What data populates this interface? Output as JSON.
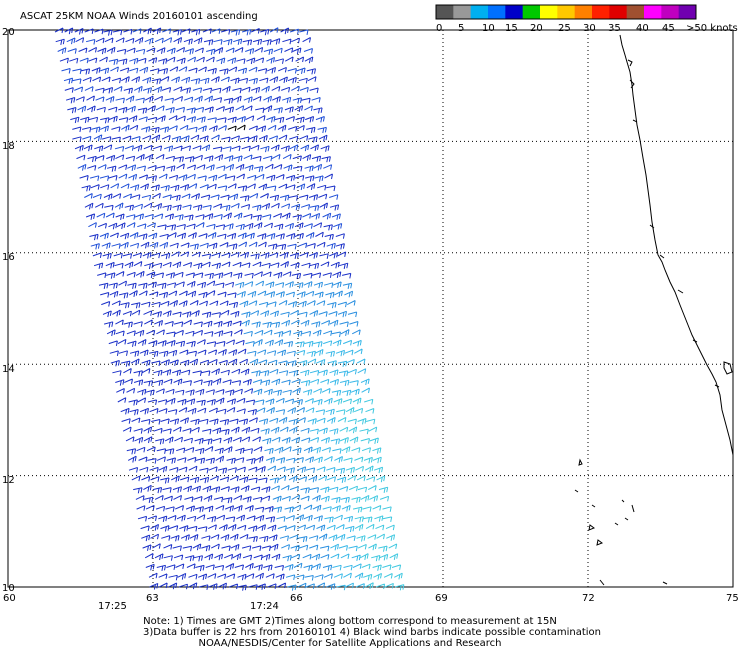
{
  "title": "ASCAT 25KM NOAA Winds 20160101 ascending",
  "legend": {
    "colors": [
      "#555555",
      "#999999",
      "#00b0f0",
      "#0070ff",
      "#0000c8",
      "#00c800",
      "#ffff00",
      "#ffc800",
      "#ff8000",
      "#ff2000",
      "#e00000",
      "#a05030",
      "#ff00ff",
      "#c000c0",
      "#7000b0"
    ],
    "labels": [
      "0",
      "5",
      "10",
      "15",
      "20",
      "25",
      "30",
      "35",
      "40",
      "45",
      ">50 knots"
    ]
  },
  "axes": {
    "lon_labels": [
      "60",
      "63",
      "66",
      "69",
      "72",
      "75"
    ],
    "lat_labels": [
      "20",
      "18",
      "16",
      "14",
      "12",
      "10"
    ],
    "lon_range": [
      60,
      75
    ],
    "lat_range": [
      10,
      20
    ],
    "grid": "dotted"
  },
  "times": {
    "t1": "17:25",
    "t1_color": "#800080",
    "t2": "17:24",
    "t2_color": "#800080"
  },
  "notes": {
    "line1": "Note: 1) Times are GMT 2)Times along bottom correspond to measurement at 15N",
    "line2": "3)Data buffer is 22 hrs from 20160101 4) Black wind barbs indicate possible contamination",
    "line3": "NOAA/NESDIS/Center for Satellite Applications and Research"
  },
  "swath": {
    "description_colors": [
      "#1020c8",
      "#1a4fd8",
      "#2aa0e8",
      "#40c8e0"
    ]
  }
}
